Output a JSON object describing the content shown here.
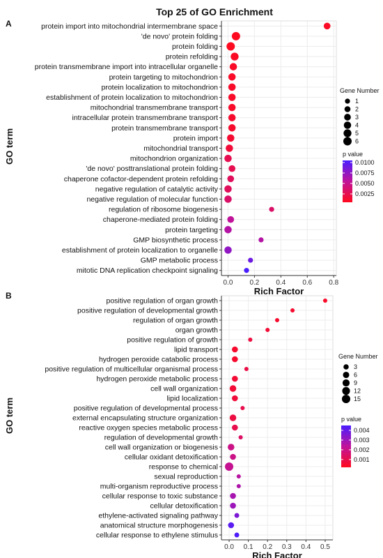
{
  "figure": {
    "title": "Top 25 of GO Enrichment"
  },
  "chart_data": [
    {
      "type": "scatter",
      "panel": "A",
      "xlabel": "Rich Factor",
      "ylabel": "GO term",
      "xlim": [
        -0.05,
        0.82
      ],
      "x_ticks": [
        0.0,
        0.2,
        0.4,
        0.6,
        0.8
      ],
      "x_tick_labels": [
        "0.0",
        "0.2",
        "0.4",
        "0.6",
        "0.8"
      ],
      "grid": true,
      "size_legend": {
        "title": "Gene Number",
        "values": [
          1,
          2,
          3,
          4,
          5,
          6
        ],
        "labels": [
          "1",
          "2",
          "3",
          "4",
          "5",
          "6"
        ]
      },
      "color_legend": {
        "title": "p value",
        "min": 0.0005,
        "max": 0.0105,
        "ticks": [
          0.01,
          0.0075,
          0.005,
          0.0025
        ],
        "tick_labels": [
          "0.0100",
          "0.0075",
          "0.0050",
          "0.0025"
        ]
      },
      "points": [
        {
          "term": "protein import into mitochondrial intermembrane space",
          "x": 0.75,
          "size": 3,
          "p": 0.0008
        },
        {
          "term": "'de novo' protein folding",
          "x": 0.06,
          "size": 6,
          "p": 0.0006
        },
        {
          "term": "protein folding",
          "x": 0.02,
          "size": 6,
          "p": 0.0006
        },
        {
          "term": "protein refolding",
          "x": 0.05,
          "size": 5,
          "p": 0.0008
        },
        {
          "term": "protein transmembrane import into intracellular organelle",
          "x": 0.04,
          "size": 4,
          "p": 0.0009
        },
        {
          "term": "protein targeting to mitochondrion",
          "x": 0.03,
          "size": 4,
          "p": 0.0009
        },
        {
          "term": "protein localization to mitochondrion",
          "x": 0.03,
          "size": 4,
          "p": 0.001
        },
        {
          "term": "establishment of protein localization to mitochondrion",
          "x": 0.03,
          "size": 4,
          "p": 0.001
        },
        {
          "term": "mitochondrial transmembrane transport",
          "x": 0.03,
          "size": 4,
          "p": 0.001
        },
        {
          "term": "intracellular protein transmembrane transport",
          "x": 0.03,
          "size": 4,
          "p": 0.0011
        },
        {
          "term": "protein transmembrane transport",
          "x": 0.03,
          "size": 4,
          "p": 0.0011
        },
        {
          "term": "protein import",
          "x": 0.02,
          "size": 4,
          "p": 0.0013
        },
        {
          "term": "mitochondrial transport",
          "x": 0.01,
          "size": 4,
          "p": 0.0016
        },
        {
          "term": "mitochondrion organization",
          "x": 0.0,
          "size": 4,
          "p": 0.0025
        },
        {
          "term": "'de novo' posttranslational protein folding",
          "x": 0.03,
          "size": 3,
          "p": 0.0025
        },
        {
          "term": "chaperone cofactor-dependent protein refolding",
          "x": 0.02,
          "size": 3,
          "p": 0.003
        },
        {
          "term": "negative regulation of catalytic activity",
          "x": 0.0,
          "size": 4,
          "p": 0.003
        },
        {
          "term": "negative regulation of molecular function",
          "x": 0.0,
          "size": 4,
          "p": 0.0035
        },
        {
          "term": "regulation of ribosome biogenesis",
          "x": 0.33,
          "size": 1,
          "p": 0.0035
        },
        {
          "term": "chaperone-mediated protein folding",
          "x": 0.02,
          "size": 3,
          "p": 0.0055
        },
        {
          "term": "protein targeting",
          "x": 0.0,
          "size": 4,
          "p": 0.006
        },
        {
          "term": "GMP biosynthetic process",
          "x": 0.25,
          "size": 1,
          "p": 0.006
        },
        {
          "term": "establishment of protein localization to organelle",
          "x": 0.0,
          "size": 4,
          "p": 0.0075
        },
        {
          "term": "GMP metabolic process",
          "x": 0.17,
          "size": 1,
          "p": 0.009
        },
        {
          "term": "mitotic DNA replication checkpoint signaling",
          "x": 0.14,
          "size": 1,
          "p": 0.0105
        }
      ]
    },
    {
      "type": "scatter",
      "panel": "B",
      "xlabel": "Rich Factor",
      "ylabel": "GO term",
      "xlim": [
        -0.04,
        0.54
      ],
      "x_ticks": [
        0.0,
        0.1,
        0.2,
        0.3,
        0.4,
        0.5
      ],
      "x_tick_labels": [
        "0.0",
        "0.1",
        "0.2",
        "0.3",
        "0.4",
        "0.5"
      ],
      "grid": true,
      "size_legend": {
        "title": "Gene Number",
        "values": [
          3,
          6,
          9,
          12,
          15
        ],
        "labels": [
          "3",
          "6",
          "9",
          "12",
          "15"
        ]
      },
      "color_legend": {
        "title": "p value",
        "min": 0.0002,
        "max": 0.0045,
        "ticks": [
          0.004,
          0.003,
          0.002,
          0.001
        ],
        "tick_labels": [
          "0.004",
          "0.003",
          "0.002",
          "0.001"
        ]
      },
      "points": [
        {
          "term": "positive regulation of organ growth",
          "x": 0.5,
          "size": 1,
          "p": 0.0004
        },
        {
          "term": "positive regulation of developmental growth",
          "x": 0.33,
          "size": 1,
          "p": 0.0005
        },
        {
          "term": "regulation of organ growth",
          "x": 0.25,
          "size": 1,
          "p": 0.0005
        },
        {
          "term": "organ growth",
          "x": 0.2,
          "size": 1,
          "p": 0.0006
        },
        {
          "term": "positive regulation of growth",
          "x": 0.11,
          "size": 1,
          "p": 0.0008
        },
        {
          "term": "lipid transport",
          "x": 0.03,
          "size": 5,
          "p": 0.0005
        },
        {
          "term": "hydrogen peroxide catabolic process",
          "x": 0.03,
          "size": 5,
          "p": 0.0005
        },
        {
          "term": "positive regulation of multicellular organismal process",
          "x": 0.09,
          "size": 1,
          "p": 0.0009
        },
        {
          "term": "hydrogen peroxide metabolic process",
          "x": 0.03,
          "size": 5,
          "p": 0.0006
        },
        {
          "term": "cell wall organization",
          "x": 0.02,
          "size": 7,
          "p": 0.0006
        },
        {
          "term": "lipid localization",
          "x": 0.03,
          "size": 5,
          "p": 0.0007
        },
        {
          "term": "positive regulation of developmental process",
          "x": 0.07,
          "size": 1,
          "p": 0.001
        },
        {
          "term": "external encapsulating structure organization",
          "x": 0.02,
          "size": 7,
          "p": 0.0008
        },
        {
          "term": "reactive oxygen species metabolic process",
          "x": 0.03,
          "size": 5,
          "p": 0.001
        },
        {
          "term": "regulation of developmental growth",
          "x": 0.06,
          "size": 1,
          "p": 0.0014
        },
        {
          "term": "cell wall organization or biogenesis",
          "x": 0.01,
          "size": 7,
          "p": 0.002
        },
        {
          "term": "cellular oxidant detoxification",
          "x": 0.02,
          "size": 5,
          "p": 0.002
        },
        {
          "term": "response to chemical",
          "x": 0.0,
          "size": 15,
          "p": 0.0022
        },
        {
          "term": "sexual reproduction",
          "x": 0.05,
          "size": 1,
          "p": 0.0025
        },
        {
          "term": "multi-organism reproductive process",
          "x": 0.05,
          "size": 1,
          "p": 0.0027
        },
        {
          "term": "cellular response to toxic substance",
          "x": 0.02,
          "size": 5,
          "p": 0.0028
        },
        {
          "term": "cellular detoxification",
          "x": 0.02,
          "size": 5,
          "p": 0.003
        },
        {
          "term": "ethylene-activated signaling pathway",
          "x": 0.04,
          "size": 2,
          "p": 0.0036
        },
        {
          "term": "anatomical structure morphogenesis",
          "x": 0.01,
          "size": 5,
          "p": 0.0042
        },
        {
          "term": "cellular response to ethylene stimulus",
          "x": 0.04,
          "size": 2,
          "p": 0.0044
        }
      ]
    }
  ]
}
